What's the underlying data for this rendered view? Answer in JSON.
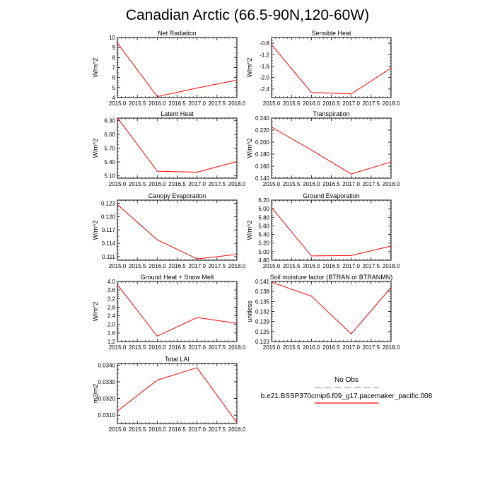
{
  "title": "Canadian Arctic (66.5-90N,120-60W)",
  "colors": {
    "series": "#ff0000",
    "obs": "#9999cc",
    "axis": "#000000"
  },
  "legend": {
    "obs_label": "No Obs",
    "model_label": "b.e21.BSSP370cmip6.f09_g17.pacemaker_pacific.008"
  },
  "chart_data": [
    {
      "type": "line",
      "title": "Net Radiation",
      "ylabel": "W/m^2",
      "x": [
        2015.0,
        2016.0,
        2017.0,
        2018.0
      ],
      "xlim": [
        2015.0,
        2018.0
      ],
      "xticks": [
        "2015.0",
        "2015.5",
        "2016.0",
        "2016.5",
        "2017.0",
        "2017.5",
        "2018.0"
      ],
      "ylim": [
        4,
        10
      ],
      "yticks": [
        "4",
        "5",
        "6",
        "7",
        "8",
        "9",
        "10"
      ],
      "series": [
        {
          "values": [
            9.45,
            4.1,
            4.95,
            5.75
          ]
        }
      ]
    },
    {
      "type": "line",
      "title": "Sensible Heat",
      "ylabel": "W/m^2",
      "x": [
        2015.0,
        2016.0,
        2017.0,
        2018.0
      ],
      "xlim": [
        2015.0,
        2018.0
      ],
      "xticks": [
        "2015.0",
        "2015.5",
        "2016.0",
        "2016.5",
        "2017.0",
        "2017.5",
        "2018.0"
      ],
      "ylim": [
        -2.7,
        -0.6
      ],
      "yticks": [
        "-2.4",
        "-2.0",
        "-1.6",
        "-1.2",
        "-0.8"
      ],
      "series": [
        {
          "values": [
            -0.85,
            -2.52,
            -2.57,
            -1.67
          ]
        }
      ]
    },
    {
      "type": "line",
      "title": "Latent Heat",
      "ylabel": "W/m^2",
      "x": [
        2015.0,
        2016.0,
        2017.0,
        2018.0
      ],
      "xlim": [
        2015.0,
        2018.0
      ],
      "xticks": [
        "2015.0",
        "2015.5",
        "2016.0",
        "2016.5",
        "2017.0",
        "2017.5",
        "2018.0"
      ],
      "ylim": [
        5.05,
        6.35
      ],
      "yticks": [
        "5.10",
        "5.40",
        "5.70",
        "6.00",
        "6.30"
      ],
      "series": [
        {
          "values": [
            6.36,
            5.2,
            5.18,
            5.41
          ]
        }
      ]
    },
    {
      "type": "line",
      "title": "Transpiration",
      "ylabel": "W/m^2",
      "x": [
        2015.0,
        2016.0,
        2017.0,
        2018.0
      ],
      "xlim": [
        2015.0,
        2018.0
      ],
      "xticks": [
        "2015.0",
        "2015.5",
        "2016.0",
        "2016.5",
        "2017.0",
        "2017.5",
        "2018.0"
      ],
      "ylim": [
        0.14,
        0.24
      ],
      "yticks": [
        "0.140",
        "0.160",
        "0.180",
        "0.200",
        "0.220",
        "0.240"
      ],
      "series": [
        {
          "values": [
            0.225,
            0.187,
            0.147,
            0.167
          ]
        }
      ]
    },
    {
      "type": "line",
      "title": "Canopy Evaporation",
      "ylabel": "W/m^2",
      "x": [
        2015.0,
        2016.0,
        2017.0,
        2018.0
      ],
      "xlim": [
        2015.0,
        2018.0
      ],
      "xticks": [
        "2015.0",
        "2015.5",
        "2016.0",
        "2016.5",
        "2017.0",
        "2017.5",
        "2018.0"
      ],
      "ylim": [
        0.1102,
        0.1237
      ],
      "yticks": [
        "0.111",
        "0.114",
        "0.117",
        "0.120",
        "0.123"
      ],
      "series": [
        {
          "values": [
            0.1227,
            0.1148,
            0.1105,
            0.1115
          ]
        }
      ]
    },
    {
      "type": "line",
      "title": "Ground Evaporation",
      "ylabel": "W/m^2",
      "x": [
        2015.0,
        2016.0,
        2017.0,
        2018.0
      ],
      "xlim": [
        2015.0,
        2018.0
      ],
      "xticks": [
        "2015.0",
        "2015.5",
        "2016.0",
        "2016.5",
        "2017.0",
        "2017.5",
        "2018.0"
      ],
      "ylim": [
        4.8,
        6.2
      ],
      "yticks": [
        "4.80",
        "5.00",
        "5.20",
        "5.40",
        "5.60",
        "5.80",
        "6.00",
        "6.20"
      ],
      "series": [
        {
          "values": [
            6.03,
            4.9,
            4.91,
            5.13
          ]
        }
      ]
    },
    {
      "type": "line",
      "title": "Ground Heat + Snow Melt",
      "ylabel": "W/m^2",
      "x": [
        2015.0,
        2016.0,
        2017.0,
        2018.0
      ],
      "xlim": [
        2015.0,
        2018.0
      ],
      "xticks": [
        "2015.0",
        "2015.5",
        "2016.0",
        "2016.5",
        "2017.0",
        "2017.5",
        "2018.0"
      ],
      "ylim": [
        1.2,
        4.0
      ],
      "yticks": [
        "1.2",
        "1.6",
        "2.0",
        "2.4",
        "2.8",
        "3.2",
        "3.6",
        "4.0"
      ],
      "series": [
        {
          "values": [
            3.85,
            1.45,
            2.32,
            2.05
          ]
        }
      ]
    },
    {
      "type": "line",
      "title": "Soil moisture factor (BTRAN or BTRANMN)",
      "ylabel": "unitless",
      "x": [
        2015.0,
        2016.0,
        2017.0,
        2018.0
      ],
      "xlim": [
        2015.0,
        2018.0
      ],
      "xticks": [
        "2015.0",
        "2015.5",
        "2016.0",
        "2016.5",
        "2017.0",
        "2017.5",
        "2018.0"
      ],
      "ylim": [
        0.123,
        0.141
      ],
      "yticks": [
        "0.123",
        "0.126",
        "0.129",
        "0.132",
        "0.135",
        "0.138",
        "0.141"
      ],
      "series": [
        {
          "values": [
            0.1408,
            0.1366,
            0.1253,
            0.1392
          ]
        }
      ]
    },
    {
      "type": "line",
      "title": "Total LAI",
      "ylabel": "m2/m2",
      "x": [
        2015.0,
        2016.0,
        2017.0,
        2018.0
      ],
      "xlim": [
        2015.0,
        2018.0
      ],
      "xticks": [
        "2015.0",
        "2015.5",
        "2016.0",
        "2016.5",
        "2017.0",
        "2017.5",
        "2018.0"
      ],
      "ylim": [
        0.0305,
        0.0341
      ],
      "yticks": [
        "0.0310",
        "0.0320",
        "0.0330",
        "0.0340"
      ],
      "series": [
        {
          "values": [
            0.03125,
            0.0331,
            0.03385,
            0.03055
          ]
        }
      ]
    }
  ]
}
